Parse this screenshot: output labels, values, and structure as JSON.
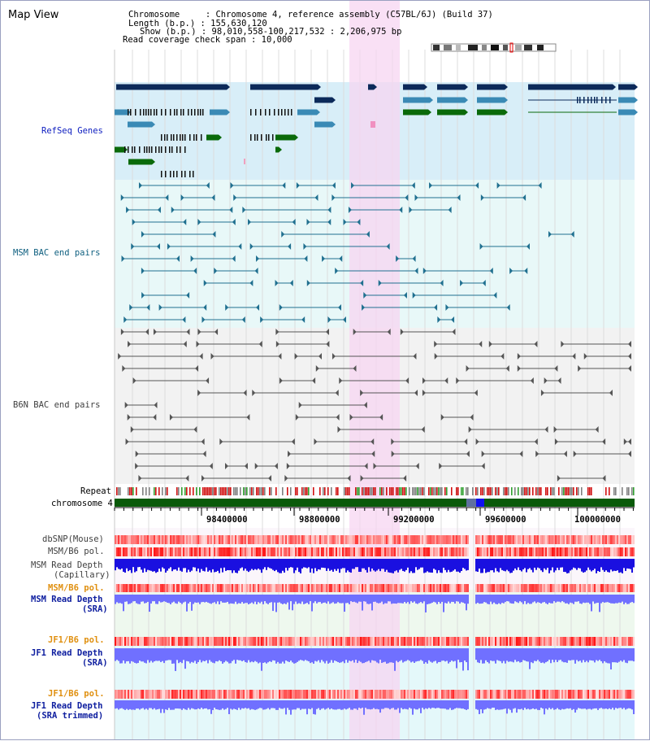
{
  "header": {
    "title": "Map View",
    "chromosome_line": "Chromosome     : Chromosome 4, reference assembly (C57BL/6J) (Build 37)",
    "length_line": "Length (b.p.) : 155,630,120",
    "show_line": "Show (b.p.) : 98,010,558-100,217,532 : 2,206,975 bp",
    "coverage_line": "Read coverage check span : 10,000"
  },
  "tracks": {
    "refseq": "RefSeq Genes",
    "msm_bac": "MSM BAC end pairs",
    "b6n_bac": "B6N BAC end pairs",
    "repeat": "Repeat",
    "chromosome": "chromosome 4"
  },
  "axis": {
    "ticks": [
      "98400000",
      "98800000",
      "99200000",
      "99600000",
      "100000000"
    ]
  },
  "lower_tracks": {
    "dbsnp": "dbSNP(Mouse)",
    "msm_b6_pol": "MSM/B6 pol.",
    "msm_read_depth_cap_1": "MSM Read Depth",
    "msm_read_depth_cap_2": "(Capillary)",
    "msm_b6_pol_sra": "MSM/B6 pol.",
    "msm_read_depth_sra_1": "MSM Read Depth",
    "msm_read_depth_sra_2": "(SRA)",
    "jf1_b6_pol": "JF1/B6 pol.",
    "jf1_read_depth_1": "JF1 Read Depth",
    "jf1_read_depth_2": "(SRA)",
    "jf1_b6_pol_trim": "JF1/B6 pol.",
    "jf1_read_depth_trim_1": "JF1 Read Depth",
    "jf1_read_depth_trim_2": "(SRA trimmed)"
  },
  "colors": {
    "highlight": "#f7d6f2",
    "refseq_bg": "#d8eef8",
    "msm_bg": "#e8f8f8",
    "b6n_bg": "#f2f2f2",
    "refseq_label": "#1020c0",
    "msm_label": "#106080",
    "b6n_label": "#404040",
    "orange_label": "#e09010",
    "blue_label": "#1020a0",
    "gene_navy": "#0c2a5a",
    "gene_teal": "#3a8ab5",
    "gene_green": "#0a6a0a",
    "chrom_green": "#0a5a0a",
    "depth_blue": "#1a10e0",
    "depth_light": "#7070ff"
  }
}
